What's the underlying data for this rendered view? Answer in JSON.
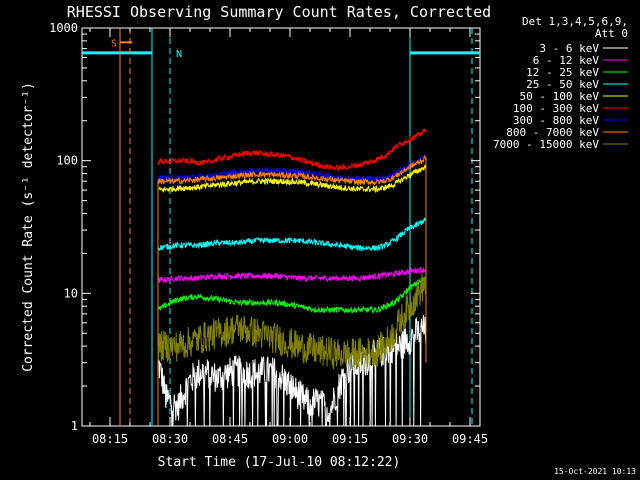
{
  "chart_data": {
    "type": "line",
    "title": "RHESSI Observing Summary Count Rates, Corrected",
    "xlabel": "Start Time (17-Jul-10 08:12:22)",
    "ylabel": "Corrected Count Rate (s⁻¹ detector⁻¹)",
    "y_scale": "log",
    "ylim": [
      1,
      1000
    ],
    "xlim_minutes": [
      8.0,
      107.5
    ],
    "x_ticks": [
      {
        "label": "08:15",
        "minute": 15
      },
      {
        "label": "08:30",
        "minute": 30
      },
      {
        "label": "08:45",
        "minute": 45
      },
      {
        "label": "09:00",
        "minute": 60
      },
      {
        "label": "09:15",
        "minute": 75
      },
      {
        "label": "09:30",
        "minute": 90
      },
      {
        "label": "09:45",
        "minute": 105
      }
    ],
    "y_ticks": [
      {
        "label": "1",
        "value": 1
      },
      {
        "label": "10",
        "value": 10
      },
      {
        "label": "100",
        "value": 100
      },
      {
        "label": "1000",
        "value": 1000
      }
    ],
    "legend": {
      "header": [
        "Det 1,3,4,5,6,9,",
        "Att 0"
      ],
      "placement": "right"
    },
    "series": [
      {
        "name": "3 - 6 keV",
        "color": "#ffffff",
        "x": [
          27,
          29,
          32,
          35,
          38,
          42,
          46,
          50,
          54,
          57,
          60,
          64,
          67,
          70,
          72,
          74,
          78,
          82,
          86,
          88,
          89,
          90,
          91,
          92,
          93,
          94
        ],
        "y": [
          3,
          1.6,
          1.4,
          2.2,
          2.6,
          2.3,
          2.6,
          2.5,
          2.6,
          2.5,
          2.0,
          1.5,
          1.5,
          1.3,
          1.9,
          2.6,
          3.0,
          3.5,
          4.0,
          4.0,
          4.5,
          4.5,
          5.0,
          5.0,
          5.5,
          5.0
        ]
      },
      {
        "name": "6 - 12 keV",
        "color": "#ff00ff",
        "x": [
          27,
          32,
          37,
          42,
          47,
          52,
          57,
          62,
          67,
          72,
          77,
          82,
          86,
          89,
          92,
          94
        ],
        "y": [
          12.5,
          13,
          13,
          13.5,
          13.5,
          13.5,
          13.5,
          13,
          13,
          13,
          13,
          13.5,
          14,
          14.5,
          15,
          15
        ]
      },
      {
        "name": "12 - 25 keV",
        "color": "#00ff00",
        "x": [
          27,
          32,
          37,
          42,
          47,
          52,
          57,
          62,
          67,
          72,
          77,
          82,
          84,
          86,
          88,
          90,
          92,
          94
        ],
        "y": [
          7.5,
          9,
          9.5,
          9,
          8.5,
          8.5,
          8.5,
          8,
          7.5,
          7.5,
          7.5,
          7.5,
          8,
          8.5,
          9.5,
          11,
          12,
          13
        ]
      },
      {
        "name": "25 - 50 keV",
        "color": "#00ffff",
        "x": [
          27,
          32,
          37,
          42,
          47,
          52,
          57,
          62,
          67,
          72,
          77,
          82,
          84,
          86,
          88,
          90,
          92,
          94
        ],
        "y": [
          22,
          23,
          23,
          24,
          24,
          25,
          25,
          25,
          24,
          23,
          22,
          22,
          23,
          25,
          28,
          31,
          33,
          36
        ]
      },
      {
        "name": "50 - 100 keV",
        "color": "#ffff00",
        "x": [
          27,
          32,
          37,
          42,
          47,
          52,
          57,
          62,
          67,
          72,
          77,
          82,
          84,
          86,
          88,
          90,
          92,
          94
        ],
        "y": [
          60,
          62,
          63,
          66,
          68,
          70,
          70,
          69,
          66,
          63,
          61,
          61,
          63,
          66,
          72,
          78,
          84,
          90
        ]
      },
      {
        "name": "100 - 300 keV",
        "color": "#ff0000",
        "x": [
          27,
          30,
          33,
          36,
          39,
          42,
          45,
          48,
          51,
          54,
          57,
          60,
          63,
          66,
          69,
          72,
          75,
          78,
          81,
          84,
          87,
          90,
          92,
          94
        ],
        "y": [
          98,
          99,
          100,
          98,
          96,
          103,
          107,
          112,
          115,
          112,
          110,
          107,
          100,
          95,
          90,
          88,
          90,
          94,
          100,
          110,
          130,
          145,
          155,
          170
        ]
      },
      {
        "name": "300 - 800 keV",
        "color": "#0000ff",
        "x": [
          27,
          32,
          37,
          42,
          47,
          52,
          57,
          62,
          67,
          72,
          77,
          82,
          84,
          86,
          88,
          90,
          92,
          94
        ],
        "y": [
          74,
          74,
          76,
          78,
          82,
          84,
          84,
          82,
          79,
          75,
          73,
          73,
          75,
          79,
          85,
          92,
          98,
          110
        ]
      },
      {
        "name": "800 - 7000 keV",
        "color": "#ff8000",
        "x": [
          27,
          32,
          37,
          42,
          47,
          52,
          57,
          62,
          67,
          72,
          77,
          82,
          84,
          86,
          88,
          90,
          92,
          94
        ],
        "y": [
          70,
          70,
          72,
          74,
          77,
          79,
          78,
          77,
          74,
          71,
          69,
          69,
          71,
          75,
          82,
          90,
          96,
          105
        ]
      },
      {
        "name": "7000 - 15000 keV",
        "color": "#808000",
        "x": [
          27,
          32,
          37,
          42,
          47,
          52,
          57,
          62,
          67,
          72,
          77,
          82,
          84,
          86,
          88,
          90,
          92,
          94
        ],
        "y": [
          4,
          4,
          4.5,
          5,
          5.5,
          5,
          4.5,
          4,
          3.7,
          3.5,
          3.5,
          3.7,
          4.2,
          5,
          6.5,
          8,
          10,
          12
        ]
      }
    ],
    "annotations": {
      "night_label": "N",
      "saa_label": "S",
      "night_bars": [
        {
          "x0": 8.0,
          "x1": 25.5
        },
        {
          "x0": 90.0,
          "x1": 107.5
        }
      ],
      "night_marker_dashed": [
        30.0,
        105.5
      ],
      "night_marker_solid": [
        25.5,
        90.0
      ],
      "saa_marker_solid": [
        17.5
      ],
      "saa_marker_dashed": [
        20.0
      ],
      "saa_bar": {
        "x0": 17.5,
        "x1": 20.5
      },
      "bar_level": 650
    }
  },
  "footer": {
    "timestamp": "15-Oct-2021 10:13"
  },
  "colors": {
    "background": "#000000",
    "axis": "#ffffff",
    "night_marker": "#00ffff",
    "saa_marker": "#ff8000"
  }
}
